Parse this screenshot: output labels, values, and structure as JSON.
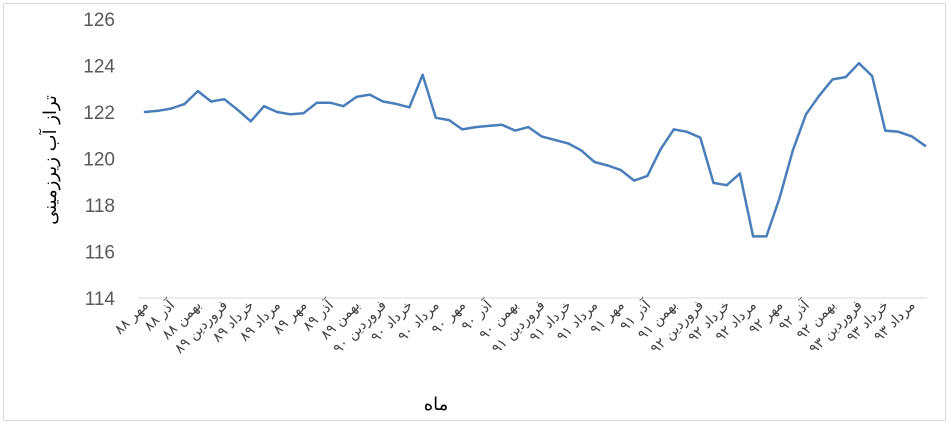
{
  "chart_data": {
    "type": "line",
    "title": "",
    "xlabel": "ماه",
    "ylabel": "تراز آب زیرزمینی",
    "ylim": [
      114,
      126
    ],
    "yticks": [
      "114",
      "116",
      "118",
      "120",
      "122",
      "124",
      "126"
    ],
    "grid": false,
    "legend": "none",
    "line_color": "#4a7ebb",
    "x_tick_labels": [
      "مهر ۸۸",
      "آذر ۸۸",
      "بهمن ۸۸",
      "فروردین ۸۹",
      "خرداد ۸۹",
      "مرداد ۸۹",
      "مهر ۸۹",
      "آذر ۸۹",
      "بهمن ۸۹",
      "فروردین ۹۰",
      "خرداد ۹۰",
      "مرداد ۹۰",
      "مهر ۹۰",
      "آذر ۹۰",
      "بهمن ۹۰",
      "فروردین ۹۱",
      "خرداد ۹۱",
      "مرداد ۹۱",
      "مهر ۹۱",
      "آذر ۹۱",
      "بهمن ۹۱",
      "فروردین ۹۲",
      "خرداد ۹۲",
      "مرداد ۹۲",
      "مهر ۹۲",
      "آذر ۹۲",
      "بهمن ۹۲",
      "فروردین ۹۳",
      "خرداد ۹۳",
      "مرداد ۹۳"
    ],
    "values": [
      122.0,
      122.05,
      122.15,
      122.35,
      122.9,
      122.45,
      122.55,
      122.1,
      121.6,
      122.25,
      122.0,
      121.9,
      121.95,
      122.4,
      122.4,
      122.25,
      122.65,
      122.75,
      122.45,
      122.35,
      122.2,
      123.6,
      121.75,
      121.65,
      121.25,
      121.35,
      121.4,
      121.45,
      121.2,
      121.35,
      120.95,
      120.8,
      120.65,
      120.35,
      119.85,
      119.7,
      119.5,
      119.05,
      119.25,
      120.4,
      121.25,
      121.15,
      120.9,
      118.95,
      118.85,
      119.35,
      116.65,
      116.65,
      118.3,
      120.35,
      121.9,
      122.7,
      123.4,
      123.5,
      124.1,
      123.55,
      121.2,
      121.15,
      120.95,
      120.55
    ]
  }
}
